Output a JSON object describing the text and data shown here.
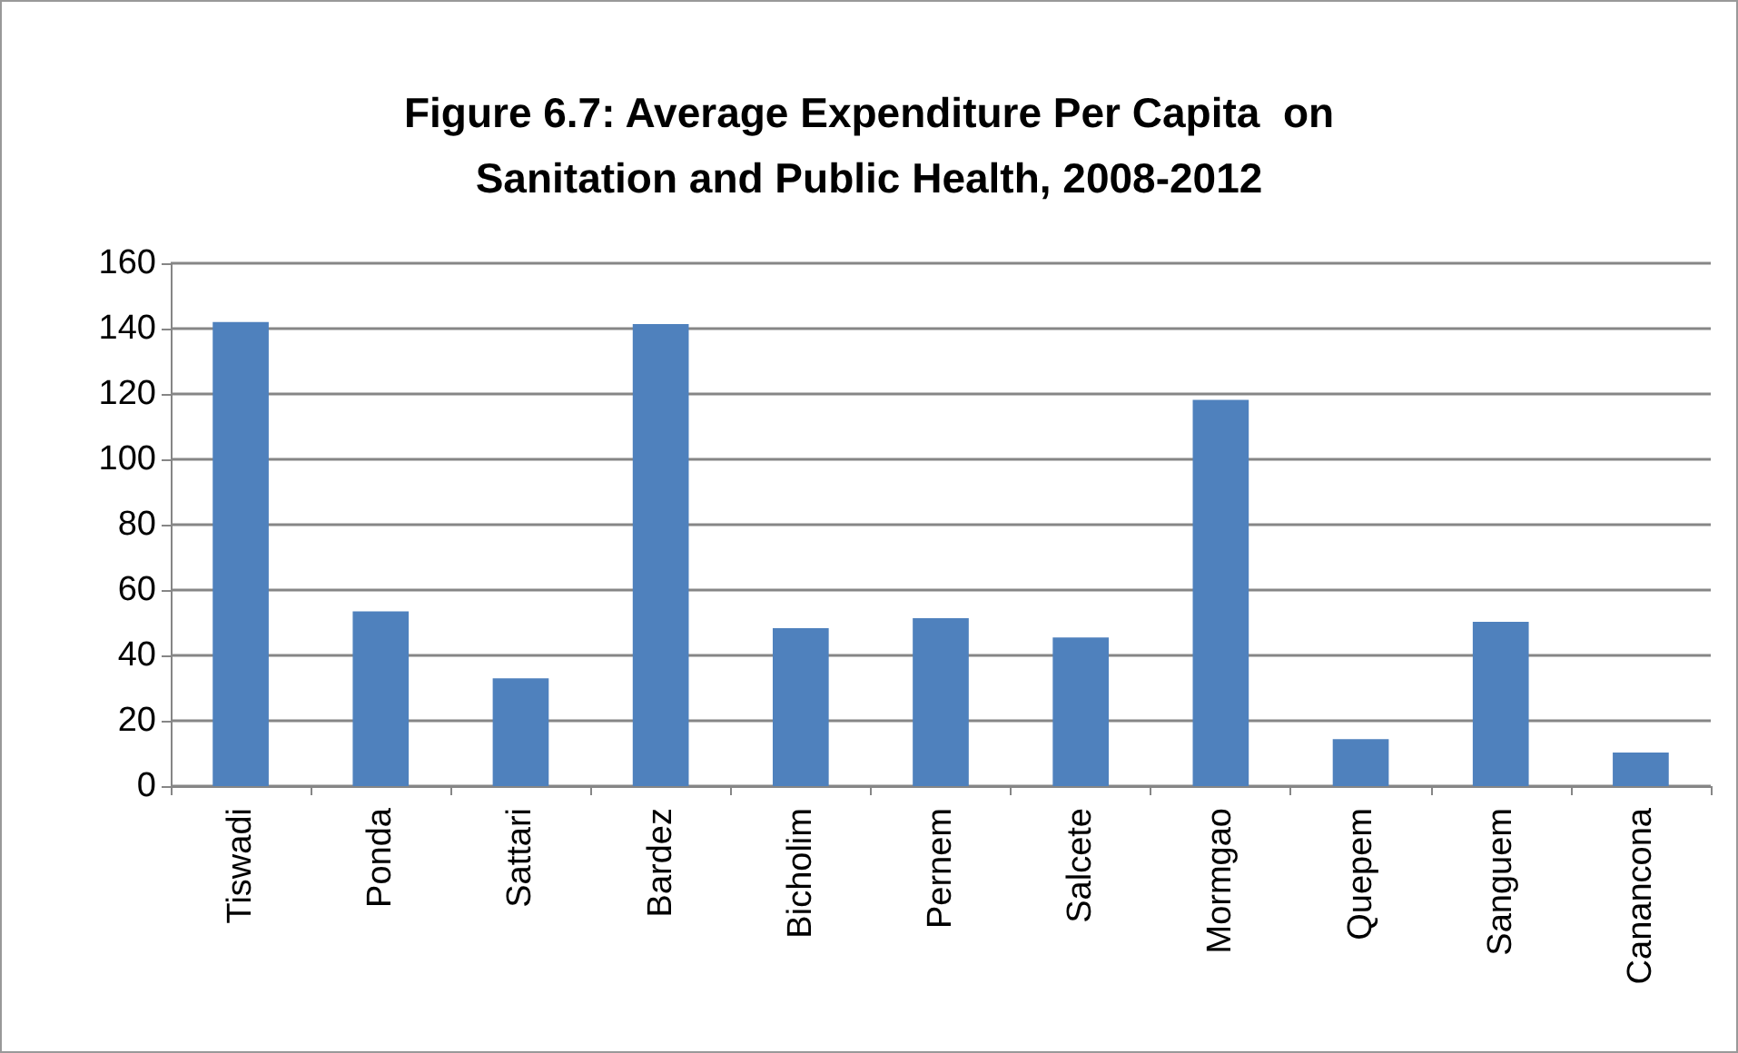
{
  "chart_data": {
    "type": "bar",
    "title": "Figure 6.7: Average Expenditure Per Capita  on\nSanitation and Public Health, 2008-2012",
    "categories": [
      "Tiswadi",
      "Ponda",
      "Sattari",
      "Bardez",
      "Bicholim",
      "Pernem",
      "Salcete",
      "Mormgao",
      "Quepem",
      "Sanguem",
      "Canancona"
    ],
    "values": [
      142,
      53.5,
      33,
      141.4,
      48.3,
      51.4,
      45.5,
      118.2,
      14.4,
      50.3,
      10.3
    ],
    "color": "#4f81bd",
    "ylim": [
      0,
      160
    ],
    "yticks": [
      0,
      20,
      40,
      60,
      80,
      100,
      120,
      140,
      160
    ],
    "grid": "y"
  }
}
